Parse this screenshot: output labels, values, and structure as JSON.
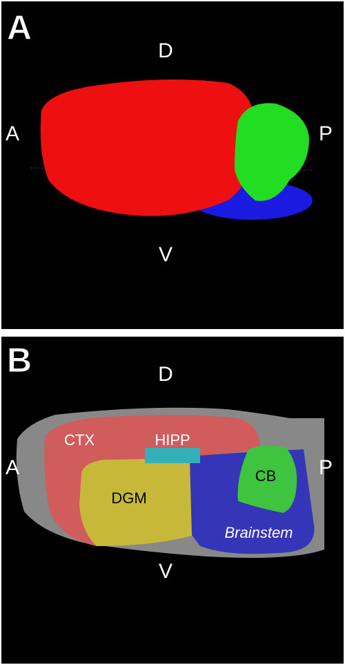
{
  "panels": [
    {
      "label": "A",
      "top": "D",
      "bottom": "V",
      "left": "A",
      "right": "P"
    },
    {
      "label": "B",
      "top": "D",
      "bottom": "V",
      "left": "A",
      "right": "P",
      "regions": [
        "CTX",
        "HIPP",
        "DGM",
        "CB",
        "Brainstem"
      ]
    }
  ]
}
